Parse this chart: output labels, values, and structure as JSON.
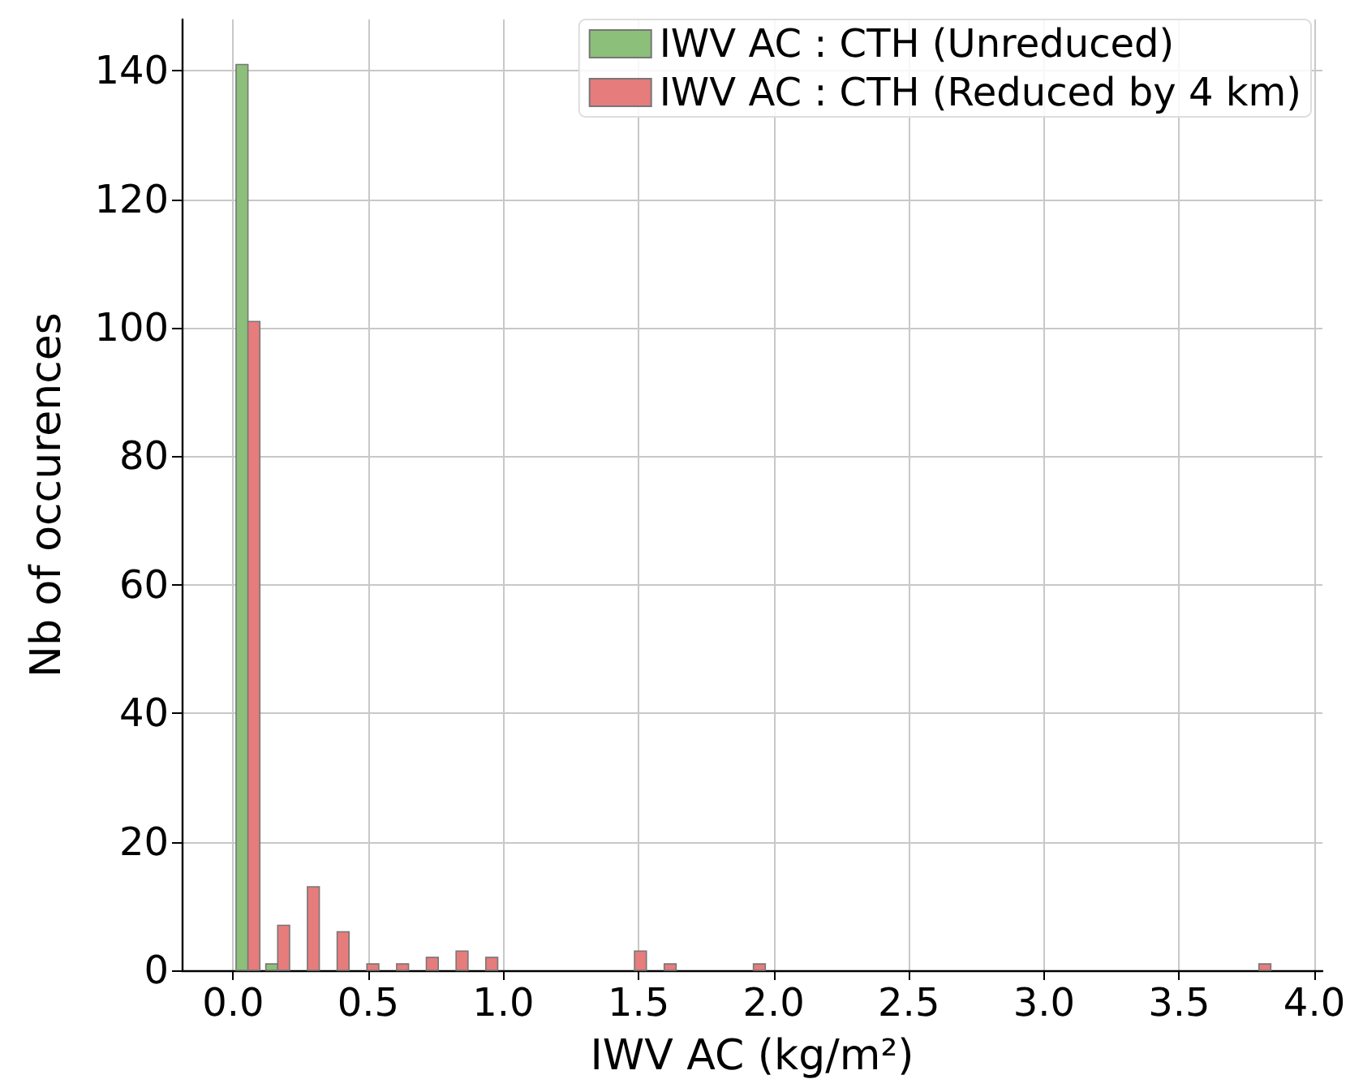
{
  "chart_data": {
    "type": "histogram",
    "xlabel": "IWV AC (kg/m²)",
    "ylabel": "Nb of occurences",
    "bins": [
      0,
      0.11,
      0.22,
      0.33,
      0.44,
      0.55,
      0.66,
      0.77,
      0.88,
      0.99,
      1.1,
      1.21,
      1.32,
      1.43,
      1.54,
      1.65,
      1.76,
      1.87,
      1.98,
      2.09,
      2.2,
      2.31,
      2.42,
      2.53,
      2.64,
      2.75,
      2.86,
      2.97,
      3.08,
      3.19,
      3.3,
      3.41,
      3.52,
      3.63,
      3.74,
      3.85
    ],
    "series": [
      {
        "name": "IWV AC : CTH (Unreduced)",
        "color": "#8cbf7a",
        "values": [
          141,
          1,
          0,
          0,
          0,
          0,
          0,
          0,
          0,
          0,
          0,
          0,
          0,
          0,
          0,
          0,
          0,
          0,
          0,
          0,
          0,
          0,
          0,
          0,
          0,
          0,
          0,
          0,
          0,
          0,
          0,
          0,
          0,
          0,
          0
        ]
      },
      {
        "name": "IWV AC : CTH (Reduced by 4 km)",
        "color": "#e67c7c",
        "values": [
          101,
          7,
          13,
          6,
          1,
          1,
          2,
          3,
          2,
          0,
          0,
          0,
          0,
          3,
          1,
          0,
          0,
          1,
          0,
          0,
          0,
          0,
          0,
          0,
          0,
          0,
          0,
          0,
          0,
          0,
          0,
          0,
          0,
          0,
          1
        ]
      }
    ],
    "xlim": [
      -0.19,
      4.03
    ],
    "xticks": [
      {
        "value": 0,
        "label": "0.0"
      },
      {
        "value": 0.5,
        "label": "0.5"
      },
      {
        "value": 1,
        "label": "1.0"
      },
      {
        "value": 1.5,
        "label": "1.5"
      },
      {
        "value": 2,
        "label": "2.0"
      },
      {
        "value": 2.5,
        "label": "2.5"
      },
      {
        "value": 3,
        "label": "3.0"
      },
      {
        "value": 3.5,
        "label": "3.5"
      },
      {
        "value": 4,
        "label": "4.0"
      }
    ],
    "ylim": [
      0,
      148
    ],
    "yticks": [
      0,
      20,
      40,
      60,
      80,
      100,
      120,
      140
    ],
    "grid": true,
    "legend": "top right"
  }
}
